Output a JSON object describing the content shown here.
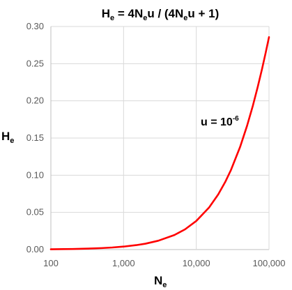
{
  "chart_data": {
    "type": "line",
    "title": {
      "h": "H",
      "h_sub": "e",
      "eq1": " = 4N",
      "eq1_sub": "e",
      "eq2": "u / (4N",
      "eq2_sub": "e",
      "eq3": "u + 1)"
    },
    "xlabel": {
      "base": "N",
      "sub": "e"
    },
    "ylabel": {
      "base": "H",
      "sub": "e"
    },
    "x_scale": "log",
    "xlim": [
      100,
      100000
    ],
    "ylim": [
      0,
      0.3
    ],
    "x_tick_labels": [
      "100",
      "1,000",
      "10,000",
      "100,000"
    ],
    "y_tick_labels": [
      "0.00",
      "0.05",
      "0.10",
      "0.15",
      "0.20",
      "0.25",
      "0.30"
    ],
    "grid": true,
    "annotation": {
      "base": "u = 10",
      "sup": "-6"
    },
    "line_color": "#ff0000",
    "series": [
      {
        "x": [
          100,
          150,
          200,
          300,
          500,
          700,
          1000,
          1500,
          2000,
          3000,
          5000,
          7000,
          10000,
          15000,
          20000,
          25000,
          30000,
          40000,
          50000,
          60000,
          70000,
          80000,
          90000,
          100000
        ],
        "y": [
          0.0004,
          0.0006,
          0.0008,
          0.0012,
          0.002,
          0.0028,
          0.004,
          0.006,
          0.0079,
          0.0119,
          0.0196,
          0.0272,
          0.0385,
          0.0566,
          0.0741,
          0.0909,
          0.1071,
          0.1379,
          0.1667,
          0.1935,
          0.2188,
          0.2424,
          0.2647,
          0.2857
        ]
      }
    ]
  }
}
